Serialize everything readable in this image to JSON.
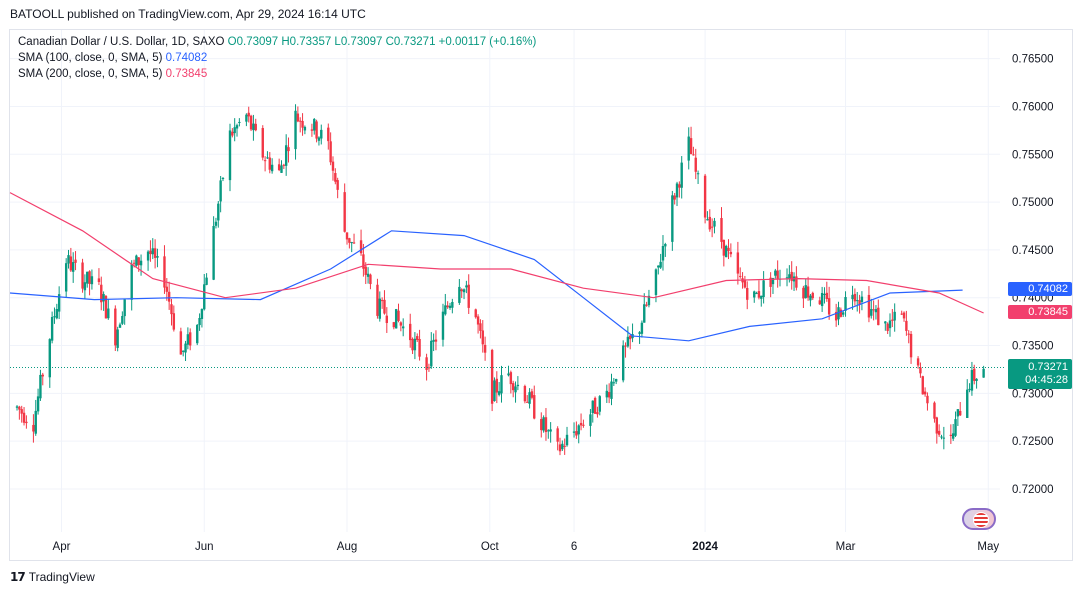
{
  "header": {
    "published": "BATOOLL published on TradingView.com, Apr 29, 2024 16:14 UTC"
  },
  "legend": {
    "symbol": "Canadian Dollar / U.S. Dollar, 1D, SAXO",
    "ohlc": "O0.73097 H0.73357 L0.73097 C0.73271 +0.00117 (+0.16%)",
    "sma100_label": "SMA (100, close, 0, SMA, 5)",
    "sma100_value": "0.74082",
    "sma200_label": "SMA (200, close, 0, SMA, 5)",
    "sma200_value": "0.73845"
  },
  "price_tags": {
    "sma100": "0.74082",
    "sma200": "0.73845",
    "last": "0.73271",
    "countdown": "04:45:28"
  },
  "footer": {
    "brand": "TradingView"
  },
  "colors": {
    "up": "#089981",
    "down": "#f23645",
    "sma100": "#2962ff",
    "sma200": "#f23f6d",
    "grid": "#f0f3fa"
  },
  "chart_data": {
    "type": "candlestick",
    "title": "Canadian Dollar / U.S. Dollar, 1D, SAXO",
    "y_ticks": [
      "0.72000",
      "0.72500",
      "0.73000",
      "0.73500",
      "0.74000",
      "0.74500",
      "0.75000",
      "0.75500",
      "0.76000",
      "0.76500"
    ],
    "ylim": [
      0.7155,
      0.768
    ],
    "x_ticks": [
      "Apr",
      "Jun",
      "Aug",
      "Oct",
      "6",
      "2024",
      "Mar",
      "May"
    ],
    "x_tick_dates": [
      "2023-04-01",
      "2023-06-01",
      "2023-08-01",
      "2023-10-01",
      "2023-11-06",
      "2024-01-01",
      "2024-03-01",
      "2024-05-01"
    ],
    "date_range": [
      "2023-03-10",
      "2024-05-06"
    ],
    "last_price": 0.73271,
    "close_path": [
      [
        "2023-03-13",
        0.7285
      ],
      [
        "2023-03-20",
        0.727
      ],
      [
        "2023-03-27",
        0.736
      ],
      [
        "2023-04-03",
        0.744
      ],
      [
        "2023-04-10",
        0.742
      ],
      [
        "2023-04-17",
        0.741
      ],
      [
        "2023-04-24",
        0.736
      ],
      [
        "2023-05-01",
        0.743
      ],
      [
        "2023-05-08",
        0.745
      ],
      [
        "2023-05-15",
        0.742
      ],
      [
        "2023-05-22",
        0.734
      ],
      [
        "2023-05-29",
        0.737
      ],
      [
        "2023-06-05",
        0.747
      ],
      [
        "2023-06-12",
        0.757
      ],
      [
        "2023-06-19",
        0.759
      ],
      [
        "2023-06-26",
        0.755
      ],
      [
        "2023-07-03",
        0.753
      ],
      [
        "2023-07-10",
        0.759
      ],
      [
        "2023-07-17",
        0.758
      ],
      [
        "2023-07-24",
        0.756
      ],
      [
        "2023-07-31",
        0.747
      ],
      [
        "2023-08-07",
        0.744
      ],
      [
        "2023-08-14",
        0.739
      ],
      [
        "2023-08-21",
        0.738
      ],
      [
        "2023-08-28",
        0.736
      ],
      [
        "2023-09-04",
        0.733
      ],
      [
        "2023-09-11",
        0.738
      ],
      [
        "2023-09-18",
        0.742
      ],
      [
        "2023-09-25",
        0.738
      ],
      [
        "2023-10-02",
        0.73
      ],
      [
        "2023-10-09",
        0.732
      ],
      [
        "2023-10-16",
        0.73
      ],
      [
        "2023-10-23",
        0.727
      ],
      [
        "2023-10-30",
        0.724
      ],
      [
        "2023-11-06",
        0.726
      ],
      [
        "2023-11-13",
        0.728
      ],
      [
        "2023-11-20",
        0.73
      ],
      [
        "2023-11-27",
        0.734
      ],
      [
        "2023-12-04",
        0.737
      ],
      [
        "2023-12-11",
        0.742
      ],
      [
        "2023-12-18",
        0.75
      ],
      [
        "2023-12-25",
        0.756
      ],
      [
        "2024-01-01",
        0.749
      ],
      [
        "2024-01-08",
        0.746
      ],
      [
        "2024-01-15",
        0.742
      ],
      [
        "2024-01-22",
        0.74
      ],
      [
        "2024-01-29",
        0.742
      ],
      [
        "2024-02-05",
        0.743
      ],
      [
        "2024-02-12",
        0.741
      ],
      [
        "2024-02-19",
        0.74
      ],
      [
        "2024-02-26",
        0.738
      ],
      [
        "2024-03-04",
        0.741
      ],
      [
        "2024-03-11",
        0.739
      ],
      [
        "2024-03-18",
        0.737
      ],
      [
        "2024-03-25",
        0.738
      ],
      [
        "2024-04-01",
        0.732
      ],
      [
        "2024-04-08",
        0.727
      ],
      [
        "2024-04-15",
        0.725
      ],
      [
        "2024-04-22",
        0.731
      ],
      [
        "2024-04-29",
        0.7327
      ]
    ],
    "series": [
      {
        "name": "SMA (100, close, 0, SMA, 5)",
        "color": "#2962ff",
        "points": [
          [
            "2023-03-10",
            0.7405
          ],
          [
            "2023-04-15",
            0.7398
          ],
          [
            "2023-05-20",
            0.74
          ],
          [
            "2023-06-25",
            0.7398
          ],
          [
            "2023-07-25",
            0.743
          ],
          [
            "2023-08-20",
            0.747
          ],
          [
            "2023-09-20",
            0.7465
          ],
          [
            "2023-10-20",
            0.744
          ],
          [
            "2023-11-10",
            0.74
          ],
          [
            "2023-12-01",
            0.736
          ],
          [
            "2023-12-25",
            0.7355
          ],
          [
            "2024-01-20",
            0.737
          ],
          [
            "2024-02-20",
            0.7378
          ],
          [
            "2024-03-20",
            0.7405
          ],
          [
            "2024-04-20",
            0.7408
          ]
        ]
      },
      {
        "name": "SMA (200, close, 0, SMA, 5)",
        "color": "#f23f6d",
        "points": [
          [
            "2023-03-10",
            0.751
          ],
          [
            "2023-04-10",
            0.747
          ],
          [
            "2023-05-10",
            0.742
          ],
          [
            "2023-06-10",
            0.74
          ],
          [
            "2023-07-10",
            0.741
          ],
          [
            "2023-08-10",
            0.7435
          ],
          [
            "2023-09-10",
            0.743
          ],
          [
            "2023-10-10",
            0.743
          ],
          [
            "2023-11-10",
            0.741
          ],
          [
            "2023-12-10",
            0.74
          ],
          [
            "2024-01-10",
            0.7418
          ],
          [
            "2024-02-10",
            0.742
          ],
          [
            "2024-03-10",
            0.7418
          ],
          [
            "2024-04-10",
            0.7405
          ],
          [
            "2024-04-29",
            0.7384
          ]
        ]
      }
    ]
  }
}
